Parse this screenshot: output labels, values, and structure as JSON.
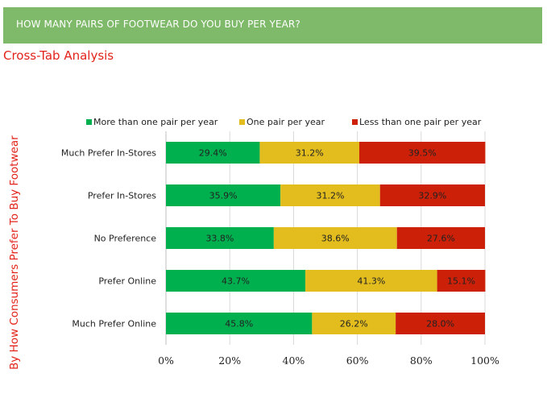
{
  "banner": {
    "title": "HOW MANY PAIRS OF FOOTWEAR DO YOU BUY PER YEAR?"
  },
  "subtitle": "Cross-Tab Analysis",
  "chart_data": {
    "type": "bar",
    "orientation": "horizontal",
    "stacked": "percent",
    "ylabel": "By How Consumers Prefer To Buy Footwear",
    "categories": [
      "Much Prefer In-Stores",
      "Prefer In-Stores",
      "No Preference",
      "Prefer Online",
      "Much Prefer Online"
    ],
    "series": [
      {
        "name": "More than one pair per year",
        "color": "#00b04f",
        "values": [
          29.4,
          35.9,
          33.8,
          43.7,
          45.8
        ],
        "labels": [
          "29.4%",
          "35.9%",
          "33.8%",
          "43.7%",
          "45.8%"
        ]
      },
      {
        "name": "One pair per year",
        "color": "#e3bd1e",
        "values": [
          31.2,
          31.2,
          38.6,
          41.3,
          26.2
        ],
        "labels": [
          "31.2%",
          "31.2%",
          "38.6%",
          "41.3%",
          "26.2%"
        ]
      },
      {
        "name": "Less than one pair per year",
        "color": "#cc2108",
        "values": [
          39.5,
          32.9,
          27.6,
          15.1,
          28.0
        ],
        "labels": [
          "39.5%",
          "32.9%",
          "27.6%",
          "15.1%",
          "28.0%"
        ]
      }
    ],
    "xlim": [
      0,
      100
    ],
    "xticks": [
      "0%",
      "20%",
      "40%",
      "60%",
      "80%",
      "100%"
    ],
    "xtick_values": [
      0,
      20,
      40,
      60,
      80,
      100
    ],
    "grid": "vertical",
    "legend": "top"
  }
}
